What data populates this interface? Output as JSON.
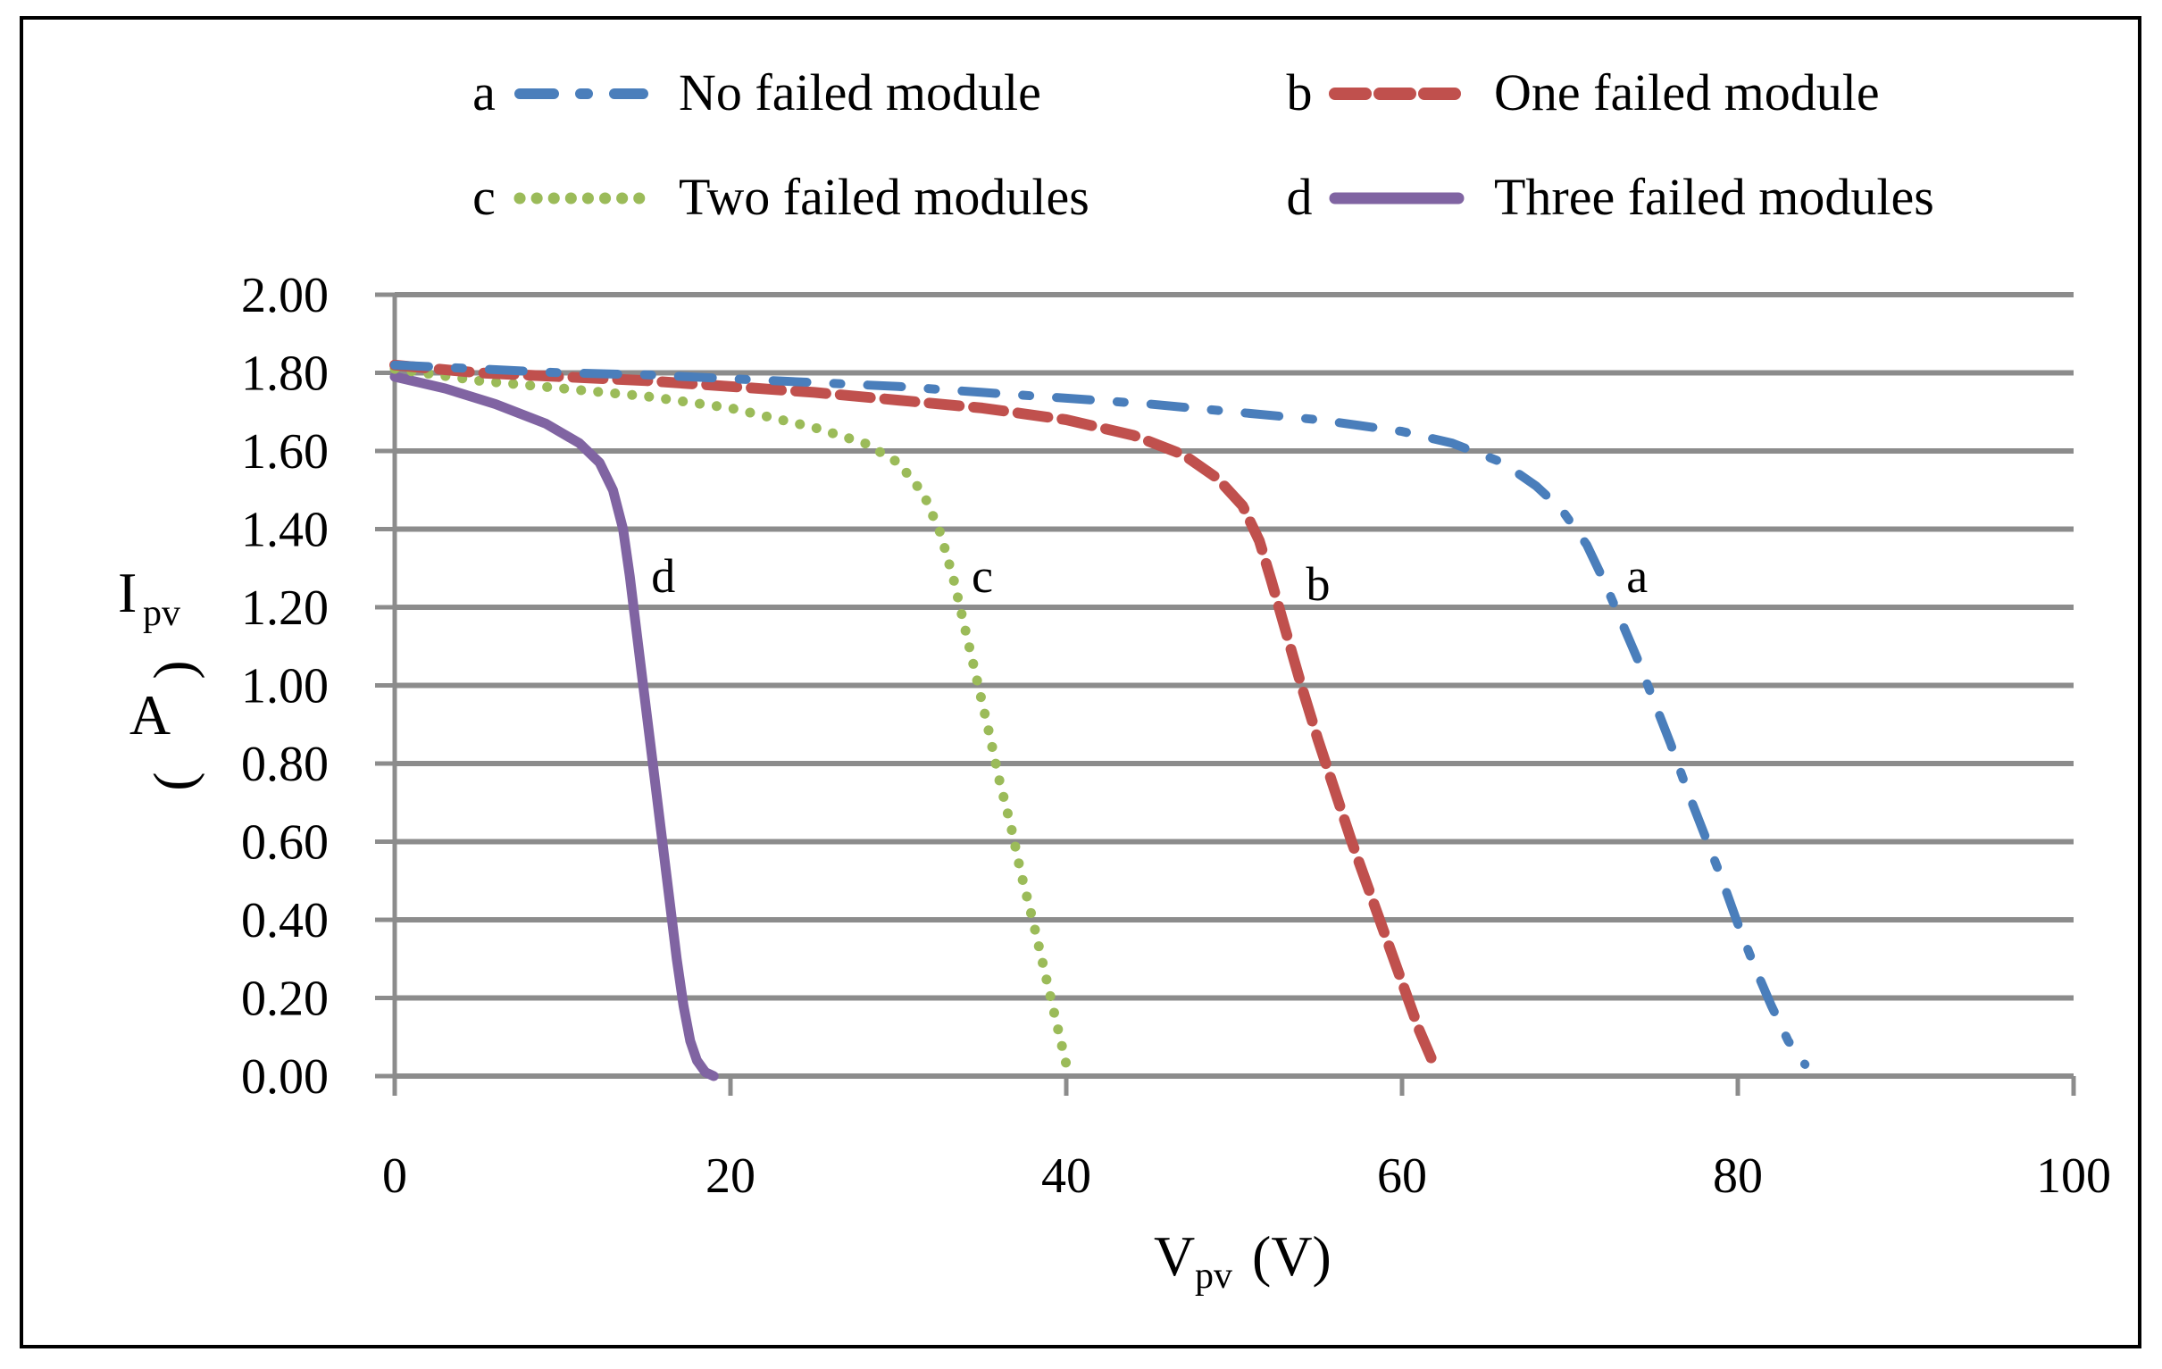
{
  "chart_data": {
    "type": "line",
    "title": "",
    "xlabel": {
      "main": "V",
      "sub": "pv",
      "unit": "(V)"
    },
    "ylabel": {
      "main": "I",
      "sub": "pv",
      "unit": "A"
    },
    "xlim": [
      0,
      100
    ],
    "ylim": [
      0,
      2.0
    ],
    "x_ticks": [
      0,
      20,
      40,
      60,
      80,
      100
    ],
    "x_tick_labels": [
      "0",
      "20",
      "40",
      "60",
      "80",
      "100"
    ],
    "y_ticks": [
      0.0,
      0.2,
      0.4,
      0.6,
      0.8,
      1.0,
      1.2,
      1.4,
      1.6,
      1.8,
      2.0
    ],
    "y_tick_labels": [
      "0.00",
      "0.20",
      "0.40",
      "0.60",
      "0.80",
      "1.00",
      "1.20",
      "1.40",
      "1.60",
      "1.80",
      "2.00"
    ],
    "grid": "horizontal",
    "legend_position": "top",
    "series": [
      {
        "key": "a",
        "name": "No failed module",
        "color": "#4a7ebb",
        "style": "dash-dot",
        "label_point": [
          74,
          1.28
        ],
        "x": [
          0,
          5,
          10,
          15,
          20,
          25,
          30,
          35,
          40,
          45,
          50,
          55,
          60,
          63,
          66,
          68,
          69.5,
          71,
          72,
          73,
          74,
          75,
          76,
          77,
          78,
          79,
          80,
          81,
          82,
          83,
          84
        ],
        "y": [
          1.82,
          1.81,
          1.8,
          1.795,
          1.785,
          1.775,
          1.765,
          1.75,
          1.735,
          1.72,
          1.7,
          1.68,
          1.65,
          1.62,
          1.57,
          1.51,
          1.45,
          1.36,
          1.27,
          1.17,
          1.07,
          0.96,
          0.85,
          0.73,
          0.62,
          0.51,
          0.39,
          0.28,
          0.18,
          0.09,
          0.03
        ]
      },
      {
        "key": "b",
        "name": "One failed module",
        "color": "#c0504d",
        "style": "dashed",
        "label_point": [
          55,
          1.26
        ],
        "x": [
          0,
          5,
          10,
          15,
          20,
          25,
          30,
          35,
          40,
          44,
          47,
          49,
          50.5,
          51.5,
          52.2,
          53,
          54,
          55,
          56,
          57,
          58,
          59,
          60,
          61,
          62
        ],
        "y": [
          1.82,
          1.8,
          1.79,
          1.78,
          1.765,
          1.75,
          1.73,
          1.71,
          1.68,
          1.64,
          1.59,
          1.53,
          1.46,
          1.37,
          1.27,
          1.15,
          1.0,
          0.86,
          0.73,
          0.6,
          0.48,
          0.36,
          0.24,
          0.12,
          0.02
        ]
      },
      {
        "key": "c",
        "name": "Two failed modules",
        "color": "#9bbb59",
        "style": "dotted",
        "label_point": [
          35,
          1.28
        ],
        "x": [
          0,
          5,
          10,
          15,
          20,
          25,
          28,
          30,
          31.5,
          32.5,
          33.3,
          34,
          34.7,
          35.4,
          36,
          36.7,
          37.3,
          38,
          38.7,
          39.4,
          40
        ],
        "y": [
          1.81,
          1.78,
          1.76,
          1.74,
          1.71,
          1.66,
          1.62,
          1.57,
          1.49,
          1.39,
          1.27,
          1.14,
          1.01,
          0.88,
          0.76,
          0.64,
          0.52,
          0.4,
          0.27,
          0.14,
          0.03
        ]
      },
      {
        "key": "d",
        "name": "Three failed modules",
        "color": "#8064a2",
        "style": "solid",
        "label_point": [
          16,
          1.28
        ],
        "x": [
          0,
          3,
          6,
          9,
          11,
          12.2,
          13,
          13.6,
          14,
          14.4,
          14.8,
          15.2,
          15.6,
          16,
          16.4,
          16.8,
          17.2,
          17.6,
          18,
          18.5,
          19
        ],
        "y": [
          1.79,
          1.76,
          1.72,
          1.67,
          1.62,
          1.57,
          1.5,
          1.4,
          1.28,
          1.14,
          1.0,
          0.86,
          0.72,
          0.58,
          0.44,
          0.3,
          0.18,
          0.09,
          0.04,
          0.01,
          0.0
        ]
      }
    ]
  }
}
